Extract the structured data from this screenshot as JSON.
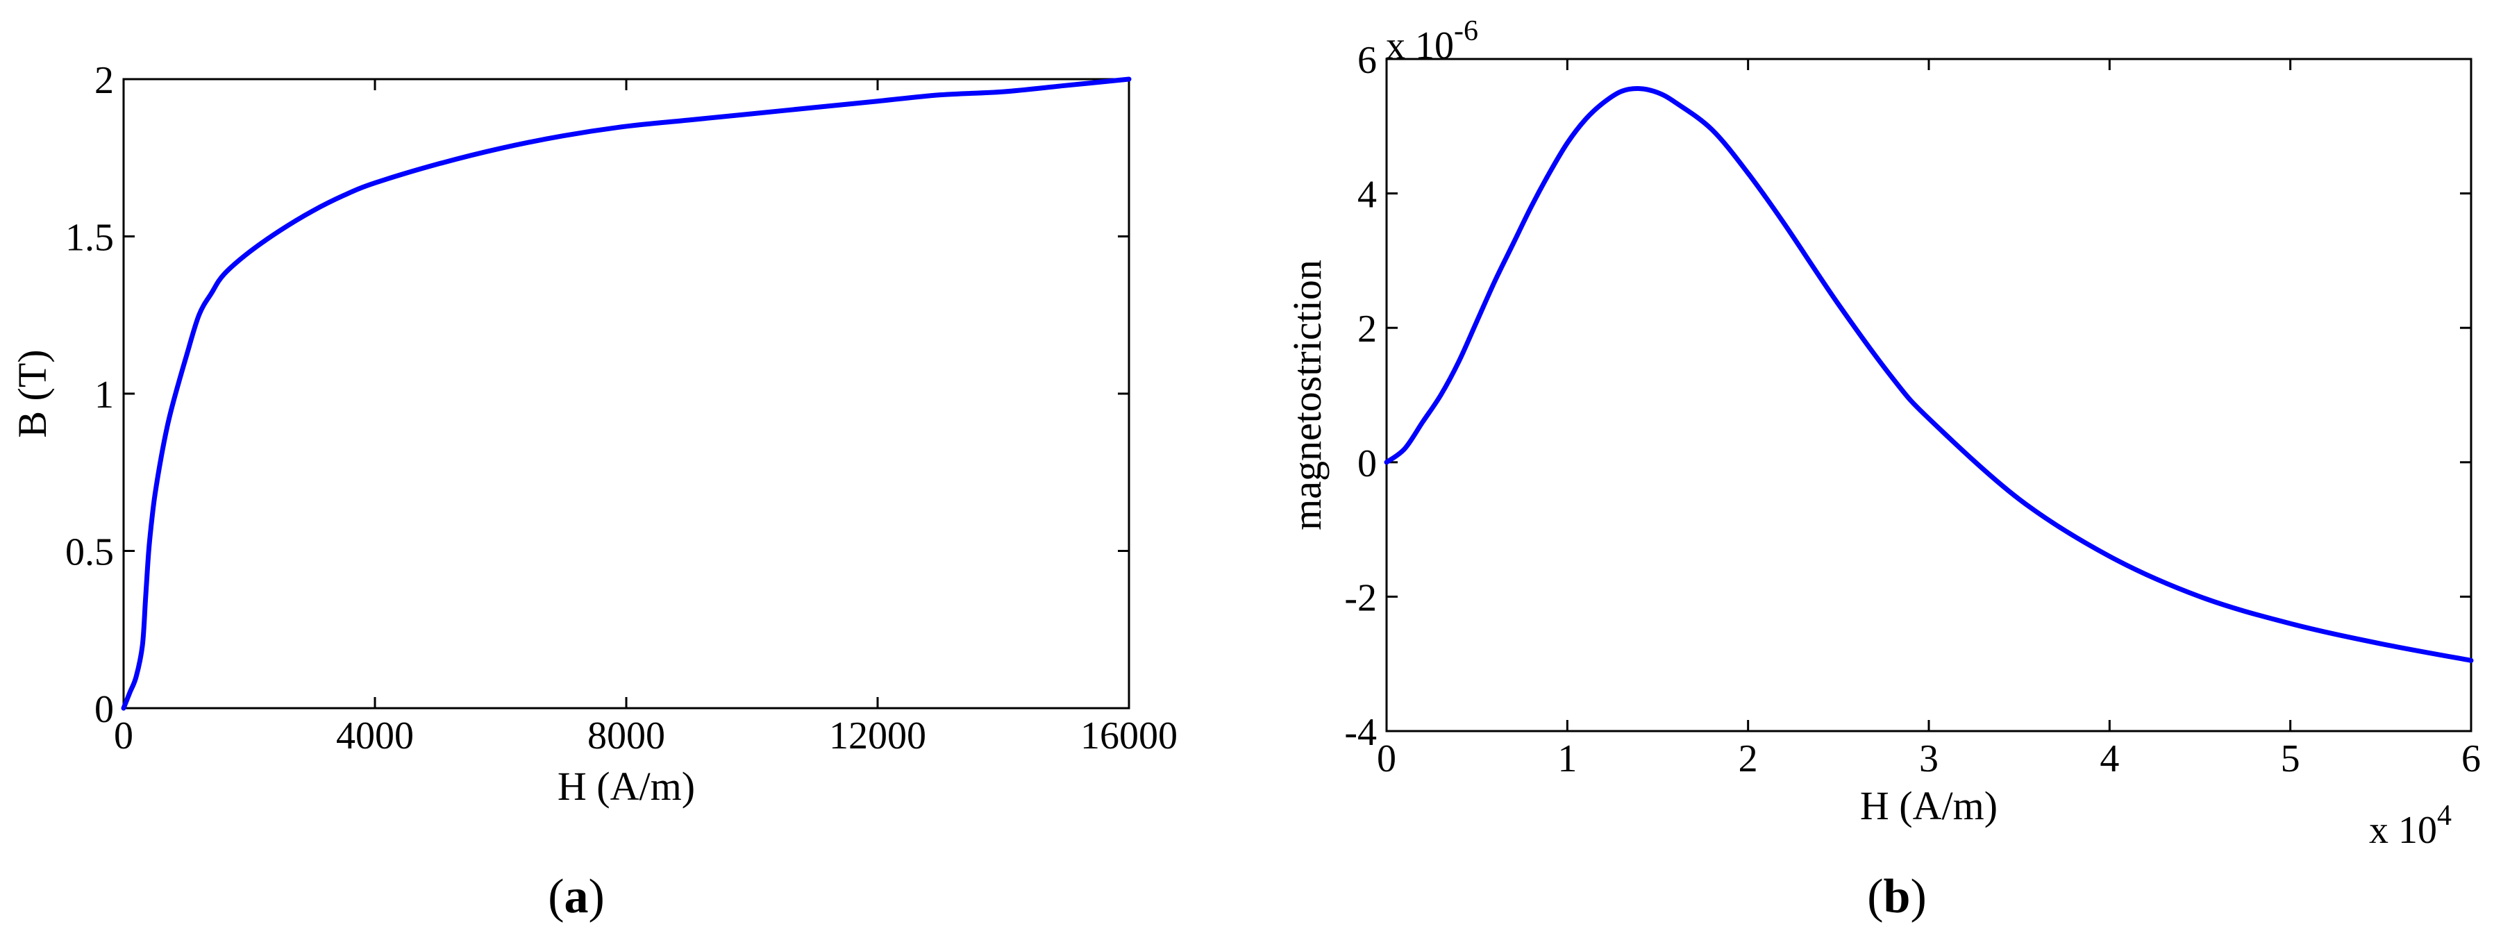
{
  "chart_data": [
    {
      "type": "line",
      "panel_label": "a",
      "xlabel": "H (A/m)",
      "ylabel": "B (T)",
      "xlim": [
        0,
        16000
      ],
      "ylim": [
        0,
        2
      ],
      "xticks": [
        0,
        4000,
        8000,
        12000,
        16000
      ],
      "xtick_labels": [
        "0",
        "4000",
        "8000",
        "12000",
        "16000"
      ],
      "yticks": [
        0,
        0.5,
        1,
        1.5,
        2
      ],
      "ytick_labels": [
        "0",
        "0.5",
        "1",
        "1.5",
        "2"
      ],
      "grid": false,
      "color": "#0000ff",
      "series": [
        {
          "x": [
            0,
            100,
            200,
            300,
            350,
            400,
            450,
            500,
            600,
            700,
            800,
            1000,
            1200,
            1400,
            1600,
            2000,
            2500,
            3000,
            3500,
            4000,
            5000,
            6000,
            7000,
            8000,
            9000,
            10000,
            11000,
            12000,
            13000,
            14000,
            15000,
            16000
          ],
          "y": [
            0,
            0.05,
            0.1,
            0.2,
            0.35,
            0.5,
            0.6,
            0.68,
            0.8,
            0.9,
            0.98,
            1.12,
            1.25,
            1.32,
            1.38,
            1.45,
            1.52,
            1.58,
            1.63,
            1.67,
            1.73,
            1.78,
            1.82,
            1.85,
            1.87,
            1.89,
            1.91,
            1.93,
            1.95,
            1.96,
            1.98,
            2.0
          ]
        }
      ]
    },
    {
      "type": "line",
      "panel_label": "b",
      "xlabel": "H (A/m)",
      "ylabel": "magnetostriction",
      "x_multiplier": "x 10",
      "x_multiplier_exp": "4",
      "y_multiplier": "x 10",
      "y_multiplier_exp": "-6",
      "xlim": [
        0,
        6
      ],
      "ylim": [
        -4,
        6
      ],
      "xticks": [
        0,
        1,
        2,
        3,
        4,
        5,
        6
      ],
      "xtick_labels": [
        "0",
        "1",
        "2",
        "3",
        "4",
        "5",
        "6"
      ],
      "yticks": [
        -4,
        -2,
        0,
        2,
        4,
        6
      ],
      "ytick_labels": [
        "-4",
        "-2",
        "0",
        "2",
        "4",
        "6"
      ],
      "grid": false,
      "color": "#0000ff",
      "series": [
        {
          "x": [
            0,
            0.1,
            0.2,
            0.3,
            0.4,
            0.5,
            0.6,
            0.7,
            0.8,
            0.9,
            1.0,
            1.1,
            1.2,
            1.3,
            1.4,
            1.5,
            1.6,
            1.8,
            2.0,
            2.2,
            2.5,
            2.8,
            3.0,
            3.5,
            4.0,
            4.5,
            5.0,
            5.5,
            6.0
          ],
          "y": [
            0,
            0.2,
            0.6,
            1.0,
            1.5,
            2.1,
            2.7,
            3.25,
            3.8,
            4.3,
            4.75,
            5.1,
            5.35,
            5.52,
            5.56,
            5.5,
            5.35,
            4.95,
            4.3,
            3.55,
            2.35,
            1.25,
            0.65,
            -0.55,
            -1.4,
            -2.0,
            -2.4,
            -2.7,
            -2.95
          ]
        }
      ]
    }
  ]
}
